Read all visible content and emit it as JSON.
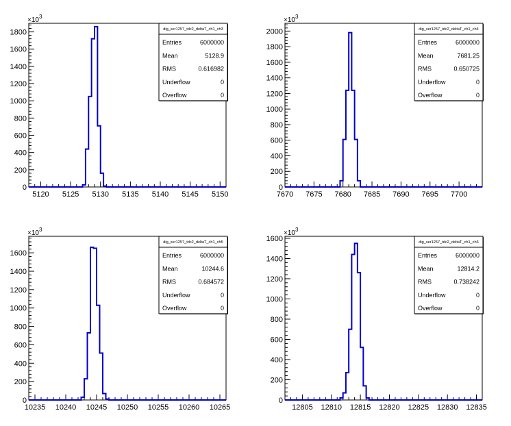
{
  "chart_data": [
    {
      "type": "histogram",
      "stats": {
        "title": "dig_ser1257_tdc2_deltaT_ch1_ch3",
        "rows": [
          {
            "label": "Entries",
            "value": "6000000"
          },
          {
            "label": "Mean",
            "value": "5128.9"
          },
          {
            "label": "RMS",
            "value": "0.616982"
          },
          {
            "label": "Underflow",
            "value": "0"
          },
          {
            "label": "Overflow",
            "value": "0"
          }
        ]
      },
      "xlim": [
        5118,
        5151
      ],
      "ylim": [
        0,
        1900
      ],
      "xticks": [
        5120,
        5125,
        5130,
        5135,
        5140,
        5145,
        5150
      ],
      "yticks": [
        0,
        200,
        400,
        600,
        800,
        1000,
        1200,
        1400,
        1600,
        1800
      ],
      "y_multiplier": "10",
      "y_multiplier_exp": "3",
      "bins": [
        {
          "x0": 5127,
          "x1": 5127.5,
          "y": 25
        },
        {
          "x0": 5127.5,
          "x1": 5128,
          "y": 440
        },
        {
          "x0": 5128,
          "x1": 5128.5,
          "y": 1050
        },
        {
          "x0": 5128.5,
          "x1": 5129,
          "y": 1720
        },
        {
          "x0": 5129,
          "x1": 5129.5,
          "y": 1860
        },
        {
          "x0": 5129.5,
          "x1": 5130,
          "y": 710
        },
        {
          "x0": 5130,
          "x1": 5130.5,
          "y": 160
        },
        {
          "x0": 5130.5,
          "x1": 5131,
          "y": 10
        }
      ]
    },
    {
      "type": "histogram",
      "stats": {
        "title": "dig_ser1257_tdc2_deltaT_ch1_ch4",
        "rows": [
          {
            "label": "Entries",
            "value": "6000000"
          },
          {
            "label": "Mean",
            "value": "7681.25"
          },
          {
            "label": "RMS",
            "value": "0.650725"
          },
          {
            "label": "Underflow",
            "value": "0"
          },
          {
            "label": "Overflow",
            "value": "0"
          }
        ]
      },
      "xlim": [
        7670,
        7704
      ],
      "ylim": [
        0,
        2100
      ],
      "xticks": [
        7670,
        7675,
        7680,
        7685,
        7690,
        7695,
        7700
      ],
      "yticks": [
        0,
        200,
        400,
        600,
        800,
        1000,
        1200,
        1400,
        1600,
        1800,
        2000
      ],
      "y_multiplier": "10",
      "y_multiplier_exp": "3",
      "bins": [
        {
          "x0": 7679.5,
          "x1": 7680,
          "y": 80
        },
        {
          "x0": 7680,
          "x1": 7680.5,
          "y": 610
        },
        {
          "x0": 7680.5,
          "x1": 7681,
          "y": 1240
        },
        {
          "x0": 7681,
          "x1": 7681.5,
          "y": 1980
        },
        {
          "x0": 7681.5,
          "x1": 7682,
          "y": 1240
        },
        {
          "x0": 7682,
          "x1": 7682.5,
          "y": 610
        },
        {
          "x0": 7682.5,
          "x1": 7683,
          "y": 80
        }
      ]
    },
    {
      "type": "histogram",
      "stats": {
        "title": "dig_ser1257_tdc2_deltaT_ch1_ch5",
        "rows": [
          {
            "label": "Entries",
            "value": "6000000"
          },
          {
            "label": "Mean",
            "value": "10244.6"
          },
          {
            "label": "RMS",
            "value": "0.684572"
          },
          {
            "label": "Underflow",
            "value": "0"
          },
          {
            "label": "Overflow",
            "value": "0"
          }
        ]
      },
      "xlim": [
        10234,
        10266
      ],
      "ylim": [
        0,
        1780
      ],
      "xticks": [
        10235,
        10240,
        10245,
        10250,
        10255,
        10260,
        10265
      ],
      "yticks": [
        0,
        200,
        400,
        600,
        800,
        1000,
        1200,
        1400,
        1600
      ],
      "y_multiplier": "10",
      "y_multiplier_exp": "3",
      "bins": [
        {
          "x0": 10242.5,
          "x1": 10243,
          "y": 30
        },
        {
          "x0": 10243,
          "x1": 10243.5,
          "y": 230
        },
        {
          "x0": 10243.5,
          "x1": 10244,
          "y": 730
        },
        {
          "x0": 10244,
          "x1": 10244.5,
          "y": 1660
        },
        {
          "x0": 10244.5,
          "x1": 10245,
          "y": 1650
        },
        {
          "x0": 10245,
          "x1": 10245.5,
          "y": 1030
        },
        {
          "x0": 10245.5,
          "x1": 10246,
          "y": 510
        },
        {
          "x0": 10246,
          "x1": 10246.5,
          "y": 70
        },
        {
          "x0": 10246.5,
          "x1": 10247,
          "y": 10
        }
      ]
    },
    {
      "type": "histogram",
      "stats": {
        "title": "dig_ser1257_tdc2_deltaT_ch1_ch6",
        "rows": [
          {
            "label": "Entries",
            "value": "6000000"
          },
          {
            "label": "Mean",
            "value": "12814.2"
          },
          {
            "label": "RMS",
            "value": "0.738242"
          },
          {
            "label": "Underflow",
            "value": "0"
          },
          {
            "label": "Overflow",
            "value": "0"
          }
        ]
      },
      "xlim": [
        12802,
        12836
      ],
      "ylim": [
        0,
        1620
      ],
      "xticks": [
        12805,
        12810,
        12815,
        12820,
        12825,
        12830,
        12835
      ],
      "yticks": [
        0,
        200,
        400,
        600,
        800,
        1000,
        1200,
        1400,
        1600
      ],
      "y_multiplier": "10",
      "y_multiplier_exp": "3",
      "bins": [
        {
          "x0": 12811.5,
          "x1": 12812,
          "y": 20
        },
        {
          "x0": 12812,
          "x1": 12812.5,
          "y": 70
        },
        {
          "x0": 12812.5,
          "x1": 12813,
          "y": 270
        },
        {
          "x0": 12813,
          "x1": 12813.5,
          "y": 700
        },
        {
          "x0": 12813.5,
          "x1": 12814,
          "y": 1440
        },
        {
          "x0": 12814,
          "x1": 12814.5,
          "y": 1550
        },
        {
          "x0": 12814.5,
          "x1": 12815,
          "y": 1260
        },
        {
          "x0": 12815,
          "x1": 12815.5,
          "y": 520
        },
        {
          "x0": 12815.5,
          "x1": 12816,
          "y": 140
        },
        {
          "x0": 12816,
          "x1": 12816.5,
          "y": 20
        }
      ]
    }
  ],
  "colors": {
    "line": "#0000cc",
    "axis": "#000000",
    "background": "#ffffff"
  }
}
